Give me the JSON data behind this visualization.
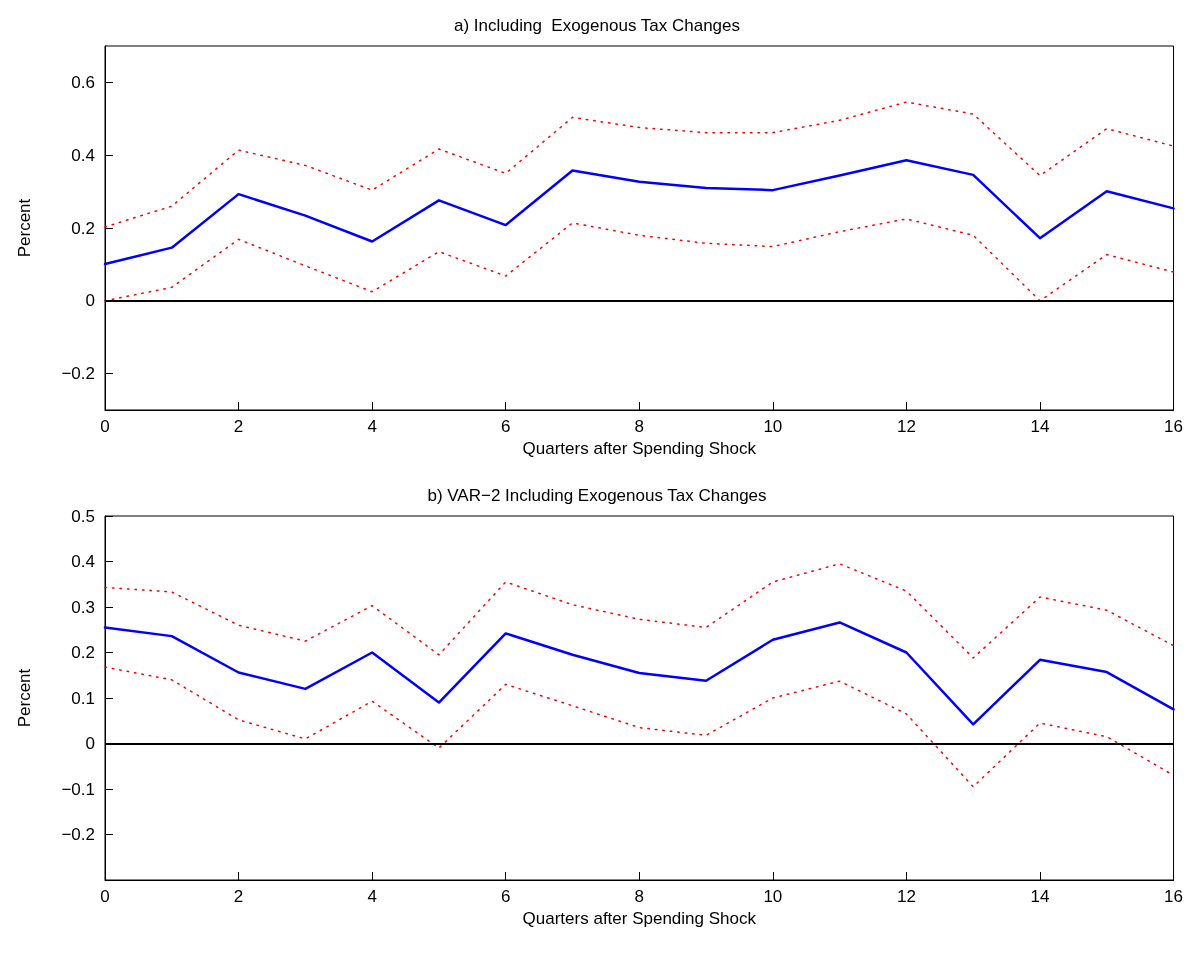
{
  "chart_data": [
    {
      "type": "line",
      "title": "a) Including  Exogenous Tax Changes",
      "xlabel": "Quarters after Spending Shock",
      "ylabel": "Percent",
      "x": [
        0,
        1,
        2,
        3,
        4,
        5,
        6,
        7,
        8,
        9,
        10,
        11,
        12,
        13,
        14,
        15,
        16
      ],
      "xlim": [
        0,
        16
      ],
      "xticks": [
        0,
        2,
        4,
        6,
        8,
        10,
        12,
        14,
        16
      ],
      "ylim": [
        -0.3,
        0.7
      ],
      "yticks": [
        -0.2,
        0,
        0.2,
        0.4,
        0.6
      ],
      "grid": false,
      "marker": "none",
      "series": [
        {
          "color": "#0000ff",
          "line_style": "solid",
          "values": [
            0.101,
            0.146,
            0.293,
            0.234,
            0.163,
            0.276,
            0.208,
            0.358,
            0.327,
            0.31,
            0.304,
            0.344,
            0.386,
            0.346,
            0.172,
            0.301,
            0.254
          ]
        },
        {
          "color": "#ff0000",
          "line_style": "dotted",
          "values": [
            0.203,
            0.26,
            0.414,
            0.372,
            0.304,
            0.417,
            0.35,
            0.504,
            0.476,
            0.462,
            0.462,
            0.496,
            0.546,
            0.513,
            0.344,
            0.473,
            0.425
          ]
        },
        {
          "color": "#ff0000",
          "line_style": "dotted",
          "values": [
            0.0,
            0.037,
            0.169,
            0.096,
            0.025,
            0.135,
            0.068,
            0.214,
            0.18,
            0.158,
            0.149,
            0.19,
            0.225,
            0.18,
            0.0,
            0.127,
            0.079
          ]
        }
      ],
      "ref_lines": [
        {
          "axis": "y",
          "value": 0,
          "color": "#000000"
        }
      ]
    },
    {
      "type": "line",
      "title": "b) VAR−2 Including Exogenous Tax Changes",
      "xlabel": "Quarters after Spending Shock",
      "ylabel": "Percent",
      "x": [
        0,
        1,
        2,
        3,
        4,
        5,
        6,
        7,
        8,
        9,
        10,
        11,
        12,
        13,
        14,
        15,
        16
      ],
      "xlim": [
        0,
        16
      ],
      "xticks": [
        0,
        2,
        4,
        6,
        8,
        10,
        12,
        14,
        16
      ],
      "ylim": [
        -0.3,
        0.5
      ],
      "yticks": [
        -0.2,
        -0.1,
        0,
        0.1,
        0.2,
        0.3,
        0.4,
        0.5
      ],
      "grid": false,
      "marker": "none",
      "series": [
        {
          "color": "#0000ff",
          "line_style": "solid",
          "values": [
            0.255,
            0.236,
            0.156,
            0.12,
            0.2,
            0.09,
            0.242,
            0.195,
            0.155,
            0.138,
            0.228,
            0.266,
            0.2,
            0.042,
            0.184,
            0.157,
            0.075
          ]
        },
        {
          "color": "#ff0000",
          "line_style": "dotted",
          "values": [
            0.343,
            0.333,
            0.26,
            0.225,
            0.303,
            0.195,
            0.355,
            0.305,
            0.273,
            0.255,
            0.355,
            0.395,
            0.335,
            0.188,
            0.322,
            0.293,
            0.215
          ]
        },
        {
          "color": "#ff0000",
          "line_style": "dotted",
          "values": [
            0.168,
            0.14,
            0.052,
            0.01,
            0.093,
            -0.01,
            0.13,
            0.083,
            0.035,
            0.018,
            0.1,
            0.137,
            0.065,
            -0.095,
            0.045,
            0.015,
            -0.07
          ]
        }
      ],
      "ref_lines": [
        {
          "axis": "y",
          "value": 0,
          "color": "#000000"
        }
      ]
    }
  ]
}
